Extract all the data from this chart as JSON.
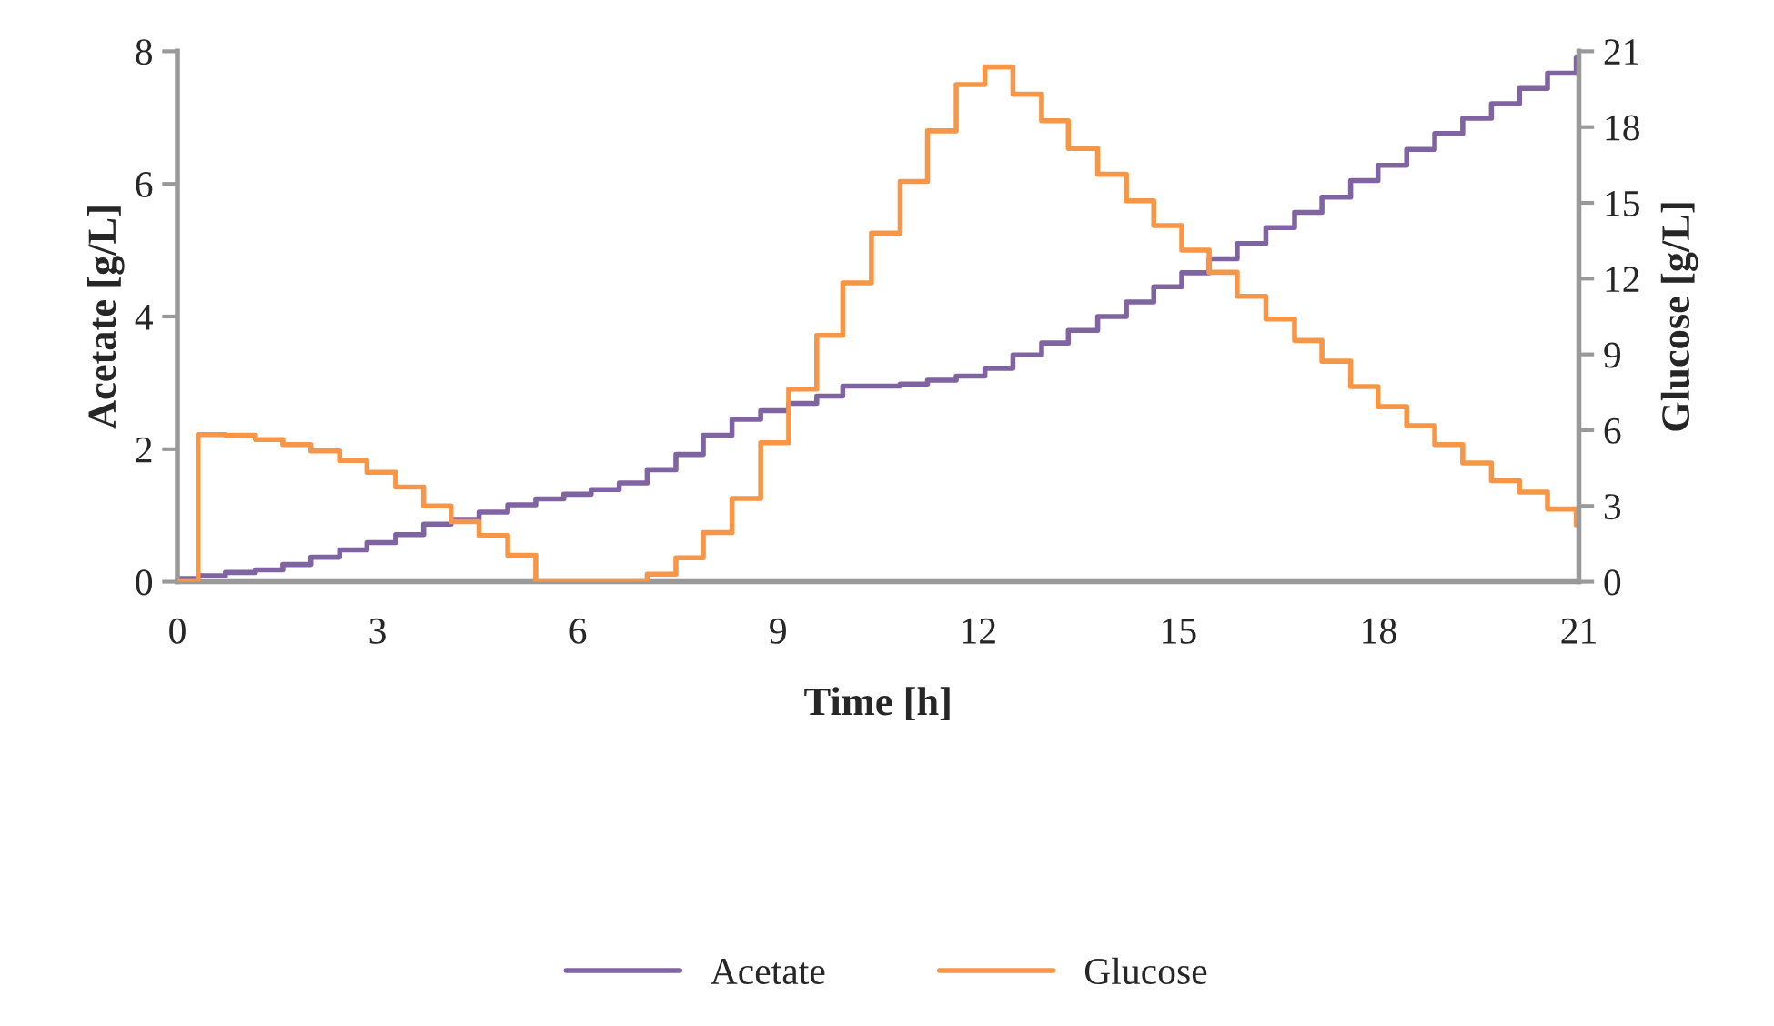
{
  "chart_data": {
    "type": "step",
    "xlabel": "Time [h]",
    "ylabel": "Acetate [g/L]",
    "y2label": "Glucose [g/L]",
    "x": [
      0,
      0.31,
      0.72,
      1.17,
      1.58,
      2.0,
      2.43,
      2.84,
      3.27,
      3.69,
      4.1,
      4.52,
      4.95,
      5.37,
      5.79,
      6.2,
      6.62,
      7.04,
      7.47,
      7.88,
      8.31,
      8.74,
      9.16,
      9.58,
      9.97,
      10.4,
      10.83,
      11.24,
      11.67,
      12.1,
      12.52,
      12.95,
      13.35,
      13.79,
      14.22,
      14.63,
      15.05,
      15.46,
      15.88,
      16.31,
      16.74,
      17.15,
      17.58,
      17.99,
      18.42,
      18.84,
      19.26,
      19.69,
      20.11,
      20.53,
      20.96,
      21
    ],
    "series": [
      {
        "name": "Acetate",
        "color": "#8064a2",
        "values": [
          0.05,
          0.09,
          0.14,
          0.18,
          0.26,
          0.37,
          0.48,
          0.59,
          0.71,
          0.87,
          0.94,
          1.05,
          1.16,
          1.25,
          1.32,
          1.39,
          1.49,
          1.69,
          1.92,
          2.21,
          2.45,
          2.58,
          2.69,
          2.8,
          2.95,
          2.95,
          2.98,
          3.04,
          3.1,
          3.22,
          3.42,
          3.6,
          3.79,
          4.0,
          4.22,
          4.45,
          4.66,
          4.87,
          5.1,
          5.34,
          5.57,
          5.8,
          6.05,
          6.28,
          6.52,
          6.76,
          6.99,
          7.21,
          7.44,
          7.67,
          7.9,
          7.9
        ]
      },
      {
        "name": "Glucose",
        "color": "#f79646",
        "axis": "y2",
        "values": [
          0,
          5.83,
          5.8,
          5.63,
          5.43,
          5.18,
          4.8,
          4.33,
          3.75,
          3.0,
          2.38,
          1.83,
          1.05,
          0,
          0,
          0,
          0,
          0.3,
          0.95,
          1.95,
          3.3,
          5.5,
          7.63,
          9.75,
          11.83,
          13.8,
          15.85,
          17.85,
          19.68,
          20.38,
          19.3,
          18.25,
          17.15,
          16.13,
          15.08,
          14.1,
          13.13,
          12.25,
          11.3,
          10.4,
          9.55,
          8.73,
          7.73,
          6.93,
          6.18,
          5.43,
          4.7,
          4.0,
          3.55,
          2.88,
          2.25,
          2.25
        ]
      }
    ],
    "xlim": [
      0,
      21
    ],
    "xticks": [
      0,
      3,
      6,
      9,
      12,
      15,
      18,
      21
    ],
    "ylim": [
      0,
      8
    ],
    "yticks": [
      0,
      2,
      4,
      6,
      8
    ],
    "y2lim": [
      0,
      21
    ],
    "y2ticks": [
      0,
      3,
      6,
      9,
      12,
      15,
      18,
      21
    ],
    "grid": false,
    "legend": "bottom",
    "line_style": "solid",
    "marker": "none"
  }
}
